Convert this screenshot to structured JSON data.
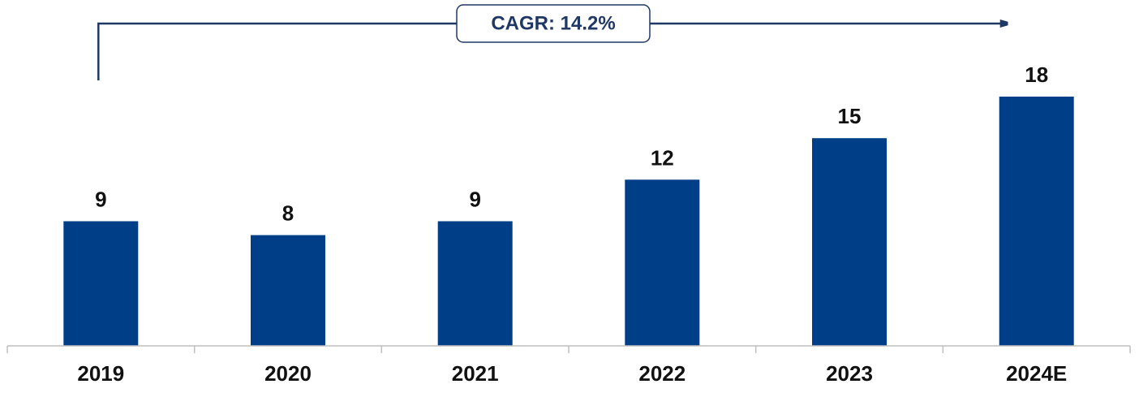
{
  "chart_data": {
    "type": "bar",
    "categories": [
      "2019",
      "2020",
      "2021",
      "2022",
      "2023",
      "2024E"
    ],
    "values": [
      9,
      8,
      9,
      12,
      15,
      18
    ],
    "title": "",
    "xlabel": "",
    "ylabel": "",
    "ylim": [
      0,
      18
    ],
    "grid": false,
    "legend": "none",
    "data_labels": true,
    "colors": {
      "bar": "#003f87",
      "axis": "#bfbfbf",
      "annotation": "#1f3864"
    },
    "annotation": {
      "label": "CAGR: 14.2%",
      "from_category": "2019",
      "to_category": "2024E"
    }
  }
}
